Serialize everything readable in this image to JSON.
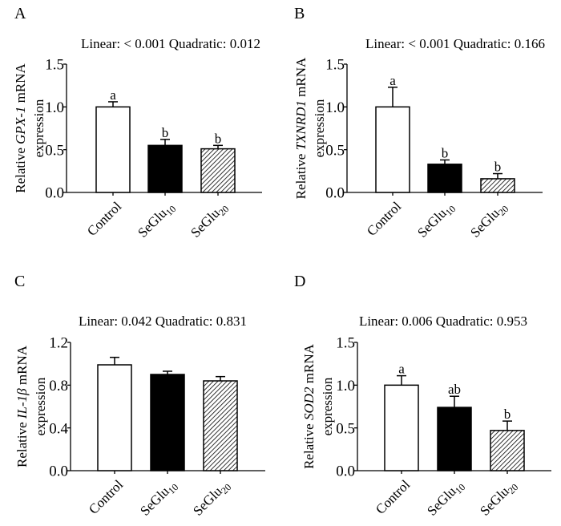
{
  "chart_data": [
    {
      "panel": "A",
      "type": "bar",
      "title": "Linear: < 0.001 Quadratic: 0.012",
      "ylabel": {
        "prefix": "Relative ",
        "gene": "GPX-1",
        "suffix": " mRNA",
        "line2": "expression"
      },
      "categories": [
        {
          "base": "Control",
          "sub": ""
        },
        {
          "base": "SeGlu",
          "sub": "10"
        },
        {
          "base": "SeGlu",
          "sub": "20"
        }
      ],
      "values": [
        1.0,
        0.55,
        0.51
      ],
      "errors": [
        0.06,
        0.07,
        0.04
      ],
      "letters": [
        "a",
        "b",
        "b"
      ],
      "ylim": [
        0,
        1.5
      ],
      "yticks": [
        "0.0",
        "0.5",
        "1.0",
        "1.5"
      ],
      "ytick_values": [
        0,
        0.5,
        1.0,
        1.5
      ],
      "fills": [
        "white",
        "black",
        "hatch"
      ]
    },
    {
      "panel": "B",
      "type": "bar",
      "title": "Linear: < 0.001 Quadratic: 0.166",
      "ylabel": {
        "prefix": "Relative ",
        "gene": "TXNRD1",
        "suffix": " mRNA",
        "line2": "expression"
      },
      "categories": [
        {
          "base": "Control",
          "sub": ""
        },
        {
          "base": "SeGlu",
          "sub": "10"
        },
        {
          "base": "SeGlu",
          "sub": "20"
        }
      ],
      "values": [
        1.0,
        0.33,
        0.16
      ],
      "errors": [
        0.23,
        0.05,
        0.06
      ],
      "letters": [
        "a",
        "b",
        "b"
      ],
      "ylim": [
        0,
        1.5
      ],
      "yticks": [
        "0.0",
        "0.5",
        "1.0",
        "1.5"
      ],
      "ytick_values": [
        0,
        0.5,
        1.0,
        1.5
      ],
      "fills": [
        "white",
        "black",
        "hatch"
      ]
    },
    {
      "panel": "C",
      "type": "bar",
      "title": "Linear: 0.042 Quadratic: 0.831",
      "ylabel": {
        "prefix": "Relative ",
        "gene": "IL-1β",
        "suffix": " mRNA",
        "line2": "expression"
      },
      "categories": [
        {
          "base": "Control",
          "sub": ""
        },
        {
          "base": "SeGlu",
          "sub": "10"
        },
        {
          "base": "SeGlu",
          "sub": "20"
        }
      ],
      "values": [
        0.99,
        0.9,
        0.84
      ],
      "errors": [
        0.07,
        0.03,
        0.04
      ],
      "letters": [
        "",
        "",
        ""
      ],
      "ylim": [
        0,
        1.2
      ],
      "yticks": [
        "0.0",
        "0.4",
        "0.8",
        "1.2"
      ],
      "ytick_values": [
        0,
        0.4,
        0.8,
        1.2
      ],
      "fills": [
        "white",
        "black",
        "hatch"
      ]
    },
    {
      "panel": "D",
      "type": "bar",
      "title": "Linear: 0.006 Quadratic: 0.953",
      "ylabel": {
        "prefix": "Relative ",
        "gene": "SOD2",
        "suffix": " mRNA",
        "line2": "expression"
      },
      "categories": [
        {
          "base": "Control",
          "sub": ""
        },
        {
          "base": "SeGlu",
          "sub": "10"
        },
        {
          "base": "SeGlu",
          "sub": "20"
        }
      ],
      "values": [
        1.0,
        0.74,
        0.47
      ],
      "errors": [
        0.11,
        0.13,
        0.11
      ],
      "letters": [
        "a",
        "ab",
        "b"
      ],
      "ylim": [
        0,
        1.5
      ],
      "yticks": [
        "0.0",
        "0.5",
        "1.0",
        "1.5"
      ],
      "ytick_values": [
        0,
        0.5,
        1.0,
        1.5
      ],
      "fills": [
        "white",
        "black",
        "hatch"
      ]
    }
  ]
}
